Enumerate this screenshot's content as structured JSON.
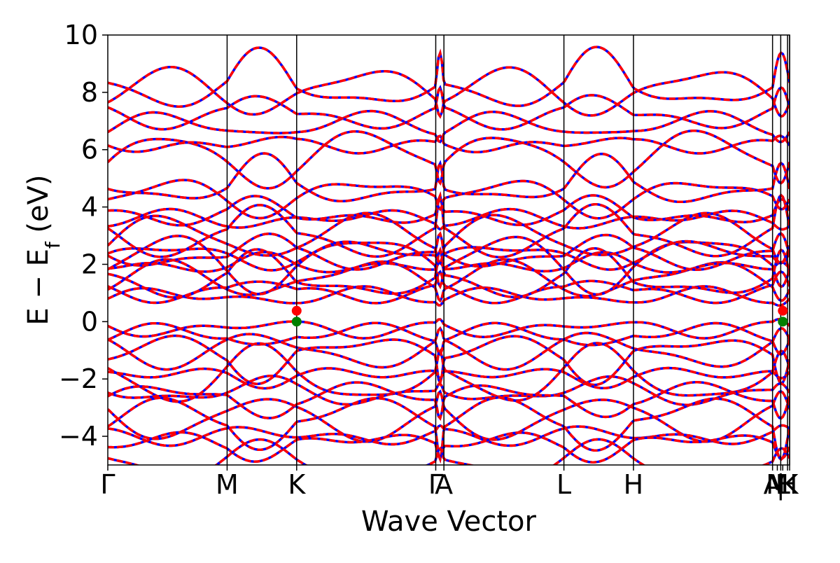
{
  "chart_data": {
    "type": "line",
    "title": "",
    "xlabel": "Wave Vector",
    "ylabel_main": "E − E",
    "ylabel_sub": "f",
    "ylabel_unit": " (eV)",
    "ylim": [
      -5,
      10
    ],
    "yticks": [
      -4,
      -2,
      0,
      2,
      4,
      6,
      8,
      10
    ],
    "ytick_labels": [
      "−4",
      "−2",
      "0",
      "2",
      "4",
      "6",
      "8",
      "10"
    ],
    "xlim": [
      0,
      1
    ],
    "kpoints": [
      {
        "label": "Γ",
        "x": 0.0,
        "line": false
      },
      {
        "label": "M",
        "x": 0.175,
        "line": true
      },
      {
        "label": "K",
        "x": 0.277,
        "line": true
      },
      {
        "label": "Γ",
        "x": 0.481,
        "line": true
      },
      {
        "label": "A",
        "x": 0.493,
        "line": true
      },
      {
        "label": "L",
        "x": 0.669,
        "line": true
      },
      {
        "label": "H",
        "x": 0.771,
        "line": true
      },
      {
        "label": "A",
        "x": 0.975,
        "line": true
      },
      {
        "label": "M",
        "x": 0.982,
        "line": false
      },
      {
        "label": "|",
        "x": 0.987,
        "line": true
      },
      {
        "label": "L",
        "x": 0.99,
        "line": false
      },
      {
        "label": "H",
        "x": 0.997,
        "line": true
      },
      {
        "label": "K",
        "x": 1.0,
        "line": true
      }
    ],
    "series": [
      {
        "color": "#0000ff",
        "style": "solid"
      },
      {
        "color": "#ff0000",
        "style": "dashed"
      }
    ],
    "markers": [
      {
        "x": 0.277,
        "y": 0.38,
        "color": "#ff0000"
      },
      {
        "x": 0.277,
        "y": 0.0,
        "color": "#008000"
      },
      {
        "x": 0.99,
        "y": 0.38,
        "color": "#ff0000"
      },
      {
        "x": 0.99,
        "y": 0.0,
        "color": "#008000"
      }
    ],
    "conduction_band_edges_eV": [
      0.8,
      1.1,
      1.3,
      1.55,
      1.8,
      2.0,
      2.2,
      2.4,
      2.7,
      3.1,
      3.5,
      3.8,
      4.2,
      4.8,
      5.4,
      6.2,
      6.7,
      7.3,
      7.8,
      8.3
    ],
    "valence_band_edges_eV": [
      -0.15,
      -0.5,
      -0.8,
      -1.2,
      -1.6,
      -1.9,
      -2.3,
      -2.7,
      -3.1,
      -3.5,
      -3.9,
      -4.3,
      -4.7
    ]
  }
}
